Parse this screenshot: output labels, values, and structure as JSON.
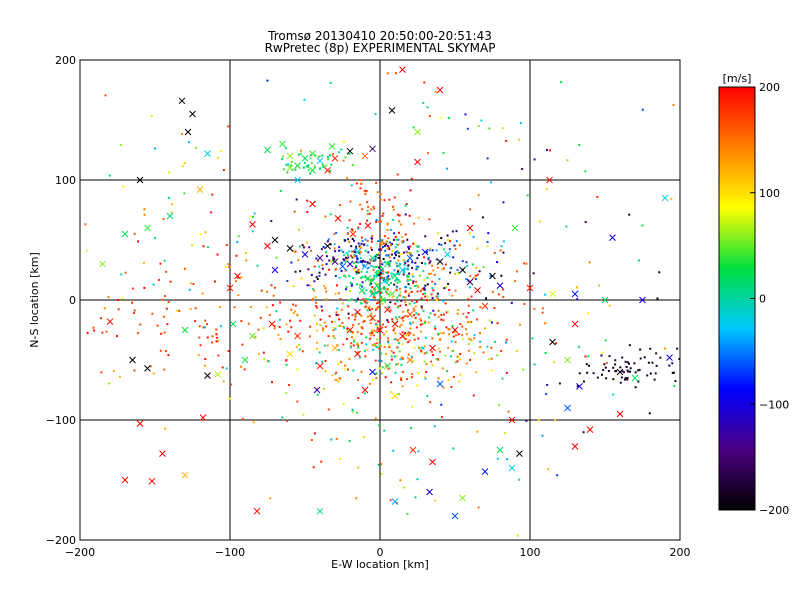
{
  "chart_data": {
    "type": "scatter",
    "title": "Tromsø 20130410 20:50:00-20:51:43",
    "subtitle": "RwPretec (8p) EXPERIMENTAL SKYMAP",
    "xlabel": "E-W location [km]",
    "ylabel": "N-S location [km]",
    "xlim": [
      -200,
      200
    ],
    "ylim": [
      -200,
      200
    ],
    "x_ticks": [
      -200,
      -100,
      0,
      100,
      200
    ],
    "y_ticks": [
      -200,
      -100,
      0,
      100,
      200
    ],
    "x_tick_labels": [
      "−200",
      "−100",
      "0",
      "100",
      "200"
    ],
    "y_tick_labels": [
      "−200",
      "−100",
      "0",
      "100",
      "200"
    ],
    "grid": true,
    "marker_types": [
      "dot",
      "cross"
    ],
    "colorbar": {
      "label": "[m/s]",
      "range": [
        -200,
        200
      ],
      "ticks": [
        200,
        100,
        0,
        -100,
        -200
      ],
      "tick_labels": [
        "200",
        "100",
        "0",
        "−100",
        "−200"
      ],
      "colors": [
        "#000000",
        "#4b0082",
        "#0000ff",
        "#00c8ff",
        "#00e040",
        "#ffff00",
        "#ff8000",
        "#ff0000"
      ]
    },
    "points": [
      {
        "x": -50,
        "y": 118,
        "v": 20,
        "m": "x"
      },
      {
        "x": -45,
        "y": 122,
        "v": 40,
        "m": "x"
      },
      {
        "x": -55,
        "y": 112,
        "v": 30,
        "m": "x"
      },
      {
        "x": -40,
        "y": 116,
        "v": -30,
        "m": "x"
      },
      {
        "x": -30,
        "y": 118,
        "v": 180,
        "m": "x"
      },
      {
        "x": -20,
        "y": 124,
        "v": -200,
        "m": "x"
      },
      {
        "x": -10,
        "y": 120,
        "v": 150,
        "m": "x"
      },
      {
        "x": -5,
        "y": 126,
        "v": -160,
        "m": "x"
      },
      {
        "x": -60,
        "y": 110,
        "v": 60,
        "m": "x"
      },
      {
        "x": -35,
        "y": 108,
        "v": 190,
        "m": "x"
      },
      {
        "x": -170,
        "y": 55,
        "v": 20,
        "m": "x"
      },
      {
        "x": -155,
        "y": 60,
        "v": 40,
        "m": "x"
      },
      {
        "x": -140,
        "y": 70,
        "v": 10,
        "m": "x"
      },
      {
        "x": -185,
        "y": 30,
        "v": 60,
        "m": "x"
      },
      {
        "x": -125,
        "y": 155,
        "v": -200,
        "m": "x"
      },
      {
        "x": -132,
        "y": 166,
        "v": -200,
        "m": "x"
      },
      {
        "x": -128,
        "y": 140,
        "v": -200,
        "m": "x"
      },
      {
        "x": -160,
        "y": 100,
        "v": -200,
        "m": "x"
      },
      {
        "x": -115,
        "y": 122,
        "v": -20,
        "m": "x"
      },
      {
        "x": -120,
        "y": 92,
        "v": 120,
        "m": "x"
      },
      {
        "x": -180,
        "y": -18,
        "v": 190,
        "m": "x"
      },
      {
        "x": -165,
        "y": -50,
        "v": -200,
        "m": "x"
      },
      {
        "x": -155,
        "y": -57,
        "v": -200,
        "m": "x"
      },
      {
        "x": -130,
        "y": -25,
        "v": 30,
        "m": "x"
      },
      {
        "x": -115,
        "y": -63,
        "v": -200,
        "m": "x"
      },
      {
        "x": -108,
        "y": -62,
        "v": 70,
        "m": "x"
      },
      {
        "x": -98,
        "y": -20,
        "v": 20,
        "m": "x"
      },
      {
        "x": -118,
        "y": -98,
        "v": 200,
        "m": "x"
      },
      {
        "x": -160,
        "y": -103,
        "v": 200,
        "m": "x"
      },
      {
        "x": -145,
        "y": -128,
        "v": 200,
        "m": "x"
      },
      {
        "x": -170,
        "y": -150,
        "v": 200,
        "m": "x"
      },
      {
        "x": -152,
        "y": -151,
        "v": 200,
        "m": "x"
      },
      {
        "x": -130,
        "y": -146,
        "v": 120,
        "m": "x"
      },
      {
        "x": -82,
        "y": -176,
        "v": 200,
        "m": "x"
      },
      {
        "x": -40,
        "y": -176,
        "v": 0,
        "m": "x"
      },
      {
        "x": 10,
        "y": -168,
        "v": -40,
        "m": "x"
      },
      {
        "x": 33,
        "y": -160,
        "v": -100,
        "m": "x"
      },
      {
        "x": 50,
        "y": -180,
        "v": -60,
        "m": "x"
      },
      {
        "x": 55,
        "y": -165,
        "v": 60,
        "m": "x"
      },
      {
        "x": 70,
        "y": -143,
        "v": -80,
        "m": "x"
      },
      {
        "x": 88,
        "y": -140,
        "v": -20,
        "m": "x"
      },
      {
        "x": 93,
        "y": -128,
        "v": -200,
        "m": "x"
      },
      {
        "x": 80,
        "y": -125,
        "v": 20,
        "m": "x"
      },
      {
        "x": 35,
        "y": -135,
        "v": 200,
        "m": "x"
      },
      {
        "x": 22,
        "y": -125,
        "v": 180,
        "m": "x"
      },
      {
        "x": 88,
        "y": -100,
        "v": 200,
        "m": "x"
      },
      {
        "x": 140,
        "y": -108,
        "v": 200,
        "m": "x"
      },
      {
        "x": 130,
        "y": -122,
        "v": 200,
        "m": "x"
      },
      {
        "x": 113,
        "y": 100,
        "v": 190,
        "m": "x"
      },
      {
        "x": 90,
        "y": 60,
        "v": 40,
        "m": "x"
      },
      {
        "x": 100,
        "y": 10,
        "v": 190,
        "m": "x"
      },
      {
        "x": 115,
        "y": 5,
        "v": 80,
        "m": "x"
      },
      {
        "x": 130,
        "y": 5,
        "v": -80,
        "m": "x"
      },
      {
        "x": 150,
        "y": 0,
        "v": 20,
        "m": "x"
      },
      {
        "x": 175,
        "y": 0,
        "v": -100,
        "m": "x"
      },
      {
        "x": 155,
        "y": 52,
        "v": -100,
        "m": "x"
      },
      {
        "x": 190,
        "y": 85,
        "v": -20,
        "m": "x"
      },
      {
        "x": 130,
        "y": -20,
        "v": 200,
        "m": "x"
      },
      {
        "x": 115,
        "y": -35,
        "v": -200,
        "m": "x"
      },
      {
        "x": 125,
        "y": -50,
        "v": 60,
        "m": "x"
      },
      {
        "x": 133,
        "y": -72,
        "v": -100,
        "m": "x"
      },
      {
        "x": 160,
        "y": -60,
        "v": -200,
        "m": "x"
      },
      {
        "x": 170,
        "y": -65,
        "v": 20,
        "m": "x"
      },
      {
        "x": 193,
        "y": -48,
        "v": -100,
        "m": "x"
      },
      {
        "x": 25,
        "y": 115,
        "v": 200,
        "m": "x"
      },
      {
        "x": 8,
        "y": 158,
        "v": -200,
        "m": "x"
      },
      {
        "x": 15,
        "y": 192,
        "v": 200,
        "m": "x"
      },
      {
        "x": 25,
        "y": 140,
        "v": 60,
        "m": "x"
      },
      {
        "x": -45,
        "y": 80,
        "v": 200,
        "m": "x"
      },
      {
        "x": -28,
        "y": 68,
        "v": 200,
        "m": "x"
      },
      {
        "x": -18,
        "y": 55,
        "v": 180,
        "m": "x"
      },
      {
        "x": -8,
        "y": 62,
        "v": 200,
        "m": "x"
      },
      {
        "x": -70,
        "y": 50,
        "v": -200,
        "m": "x"
      },
      {
        "x": -60,
        "y": 43,
        "v": -200,
        "m": "x"
      },
      {
        "x": -50,
        "y": 38,
        "v": -100,
        "m": "x"
      },
      {
        "x": -40,
        "y": 35,
        "v": -140,
        "m": "x"
      },
      {
        "x": -30,
        "y": 32,
        "v": -160,
        "m": "x"
      },
      {
        "x": -25,
        "y": 28,
        "v": -60,
        "m": "x"
      },
      {
        "x": -20,
        "y": 30,
        "v": -120,
        "m": "x"
      },
      {
        "x": -10,
        "y": 28,
        "v": -40,
        "m": "x"
      },
      {
        "x": -35,
        "y": 45,
        "v": -200,
        "m": "x"
      },
      {
        "x": -15,
        "y": 40,
        "v": -20,
        "m": "x"
      },
      {
        "x": -5,
        "y": 35,
        "v": 0,
        "m": "x"
      },
      {
        "x": 5,
        "y": 30,
        "v": 10,
        "m": "x"
      },
      {
        "x": 10,
        "y": 20,
        "v": 20,
        "m": "x"
      },
      {
        "x": 15,
        "y": 25,
        "v": -30,
        "m": "x"
      },
      {
        "x": 20,
        "y": 35,
        "v": -60,
        "m": "x"
      },
      {
        "x": 30,
        "y": 40,
        "v": -80,
        "m": "x"
      },
      {
        "x": 40,
        "y": 32,
        "v": -200,
        "m": "x"
      },
      {
        "x": 45,
        "y": 38,
        "v": -20,
        "m": "x"
      },
      {
        "x": 55,
        "y": 25,
        "v": -200,
        "m": "x"
      },
      {
        "x": 60,
        "y": 15,
        "v": -160,
        "m": "x"
      },
      {
        "x": 65,
        "y": 8,
        "v": 200,
        "m": "x"
      },
      {
        "x": 75,
        "y": 20,
        "v": -200,
        "m": "x"
      },
      {
        "x": 80,
        "y": 12,
        "v": -100,
        "m": "x"
      },
      {
        "x": 70,
        "y": -5,
        "v": 180,
        "m": "x"
      },
      {
        "x": -5,
        "y": 5,
        "v": 0,
        "m": "x"
      },
      {
        "x": 0,
        "y": 8,
        "v": 20,
        "m": "x"
      },
      {
        "x": 2,
        "y": 0,
        "v": 40,
        "m": "x"
      },
      {
        "x": -2,
        "y": 12,
        "v": 10,
        "m": "x"
      },
      {
        "x": 3,
        "y": 16,
        "v": -20,
        "m": "x"
      },
      {
        "x": -8,
        "y": 18,
        "v": 30,
        "m": "x"
      },
      {
        "x": 8,
        "y": 5,
        "v": 50,
        "m": "x"
      },
      {
        "x": -12,
        "y": 8,
        "v": 20,
        "m": "x"
      },
      {
        "x": 5,
        "y": -8,
        "v": 200,
        "m": "x"
      },
      {
        "x": -5,
        "y": -15,
        "v": 180,
        "m": "x"
      },
      {
        "x": 10,
        "y": -20,
        "v": 200,
        "m": "x"
      },
      {
        "x": -15,
        "y": -10,
        "v": 200,
        "m": "x"
      },
      {
        "x": 20,
        "y": -12,
        "v": 160,
        "m": "x"
      },
      {
        "x": 0,
        "y": -25,
        "v": 200,
        "m": "x"
      },
      {
        "x": -20,
        "y": -25,
        "v": 190,
        "m": "x"
      },
      {
        "x": 15,
        "y": -30,
        "v": 200,
        "m": "x"
      },
      {
        "x": -30,
        "y": -40,
        "v": 120,
        "m": "x"
      },
      {
        "x": -15,
        "y": -45,
        "v": 200,
        "m": "x"
      },
      {
        "x": 5,
        "y": -55,
        "v": 40,
        "m": "x"
      },
      {
        "x": -5,
        "y": -60,
        "v": -80,
        "m": "x"
      },
      {
        "x": 20,
        "y": -50,
        "v": 150,
        "m": "x"
      },
      {
        "x": -40,
        "y": -55,
        "v": 190,
        "m": "x"
      },
      {
        "x": -55,
        "y": -30,
        "v": 180,
        "m": "x"
      },
      {
        "x": -60,
        "y": -45,
        "v": 100,
        "m": "x"
      },
      {
        "x": -42,
        "y": -75,
        "v": -120,
        "m": "x"
      },
      {
        "x": -10,
        "y": -75,
        "v": 200,
        "m": "x"
      },
      {
        "x": 10,
        "y": -80,
        "v": 100,
        "m": "x"
      },
      {
        "x": 40,
        "y": -70,
        "v": -60,
        "m": "x"
      },
      {
        "x": 35,
        "y": -40,
        "v": 200,
        "m": "x"
      },
      {
        "x": 50,
        "y": -25,
        "v": 200,
        "m": "x"
      },
      {
        "x": -85,
        "y": 63,
        "v": 200,
        "m": "x"
      },
      {
        "x": -75,
        "y": 45,
        "v": 200,
        "m": "x"
      },
      {
        "x": -95,
        "y": 20,
        "v": 200,
        "m": "x"
      },
      {
        "x": -100,
        "y": 10,
        "v": 190,
        "m": "x"
      },
      {
        "x": -70,
        "y": 25,
        "v": -100,
        "m": "x"
      },
      {
        "x": -90,
        "y": -50,
        "v": 30,
        "m": "x"
      },
      {
        "x": -85,
        "y": -30,
        "v": 50,
        "m": "x"
      },
      {
        "x": -72,
        "y": -20,
        "v": 200,
        "m": "x"
      },
      {
        "x": 125,
        "y": -90,
        "v": -60,
        "m": "x"
      },
      {
        "x": 160,
        "y": -95,
        "v": 200,
        "m": "x"
      },
      {
        "x": 40,
        "y": 175,
        "v": 200,
        "m": "x"
      },
      {
        "x": 60,
        "y": 60,
        "v": 200,
        "m": "x"
      },
      {
        "x": -60,
        "y": 120,
        "v": 60,
        "m": "x"
      },
      {
        "x": -55,
        "y": 100,
        "v": -20,
        "m": "x"
      },
      {
        "x": -45,
        "y": 108,
        "v": 30,
        "m": "x"
      },
      {
        "x": -32,
        "y": 128,
        "v": 40,
        "m": "x"
      },
      {
        "x": -75,
        "y": 125,
        "v": 20,
        "m": "x"
      },
      {
        "x": -65,
        "y": 130,
        "v": 40,
        "m": "x"
      }
    ],
    "clusters": [
      {
        "cx": 8,
        "cy": -12,
        "sx": 38,
        "sy": 22,
        "n": 260,
        "vmin": 130,
        "vmax": 200,
        "m": "dot"
      },
      {
        "cx": 8,
        "cy": -40,
        "sx": 40,
        "sy": 18,
        "n": 200,
        "vmin": -40,
        "vmax": 200,
        "m": "dot"
      },
      {
        "cx": -5,
        "cy": 35,
        "sx": 30,
        "sy": 12,
        "n": 180,
        "vmin": -200,
        "vmax": -40,
        "m": "dot"
      },
      {
        "cx": 0,
        "cy": 18,
        "sx": 14,
        "sy": 12,
        "n": 150,
        "vmin": -20,
        "vmax": 40,
        "m": "dot"
      },
      {
        "cx": -2,
        "cy": 60,
        "sx": 14,
        "sy": 25,
        "n": 90,
        "vmin": 140,
        "vmax": 200,
        "m": "dot"
      },
      {
        "cx": 30,
        "cy": 25,
        "sx": 35,
        "sy": 22,
        "n": 110,
        "vmin": -200,
        "vmax": 200,
        "m": "dot"
      },
      {
        "cx": -40,
        "cy": 0,
        "sx": 55,
        "sy": 45,
        "n": 140,
        "vmin": 100,
        "vmax": 200,
        "m": "dot"
      },
      {
        "cx": 0,
        "cy": -100,
        "sx": 55,
        "sy": 45,
        "n": 80,
        "vmin": -40,
        "vmax": 200,
        "m": "dot"
      },
      {
        "cx": 165,
        "cy": -58,
        "sx": 15,
        "sy": 10,
        "n": 70,
        "vmin": -200,
        "vmax": -170,
        "m": "dot"
      },
      {
        "cx": -45,
        "cy": 115,
        "sx": 12,
        "sy": 6,
        "n": 45,
        "vmin": 0,
        "vmax": 60,
        "m": "dot"
      },
      {
        "cx": -130,
        "cy": -20,
        "sx": 35,
        "sy": 20,
        "n": 60,
        "vmin": 160,
        "vmax": 200,
        "m": "dot"
      },
      {
        "cx": 60,
        "cy": 80,
        "sx": 80,
        "sy": 70,
        "n": 90,
        "vmin": -200,
        "vmax": 200,
        "m": "dot"
      },
      {
        "cx": -120,
        "cy": 60,
        "sx": 60,
        "sy": 60,
        "n": 60,
        "vmin": -40,
        "vmax": 200,
        "m": "dot"
      },
      {
        "cx": 110,
        "cy": -60,
        "sx": 50,
        "sy": 60,
        "n": 40,
        "vmin": -200,
        "vmax": 200,
        "m": "dot"
      }
    ]
  }
}
